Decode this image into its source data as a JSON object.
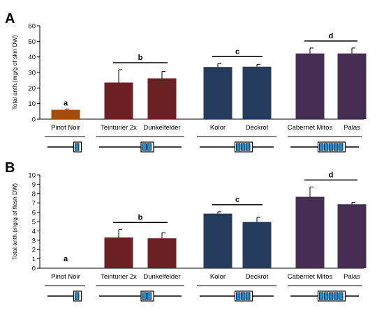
{
  "chart_data": [
    {
      "panel": "A",
      "type": "bar",
      "ylabel": "Total anth.(mg/g of skin DW)",
      "ylim": [
        0,
        60
      ],
      "yticks": [
        0,
        10,
        20,
        30,
        40,
        50,
        60
      ],
      "categories": [
        "Pinot Noir",
        "Teinturier 2x",
        "Dunkelfelder",
        "Kolor",
        "Deckrot",
        "Cabernet Mitos",
        "Palas"
      ],
      "values": [
        6,
        23.5,
        26.2,
        33.5,
        33.7,
        42.2,
        42.2
      ],
      "errors": [
        0.5,
        8.3,
        4.5,
        2.2,
        1.5,
        3.5,
        3.5
      ],
      "colors": [
        "#a24c0e",
        "#6b2124",
        "#6b2124",
        "#253b5b",
        "#253b5b",
        "#452c52",
        "#452c52"
      ],
      "groups": [
        {
          "label": "a",
          "from": 0,
          "to": 0
        },
        {
          "label": "b",
          "from": 1,
          "to": 2
        },
        {
          "label": "c",
          "from": 3,
          "to": 4
        },
        {
          "label": "d",
          "from": 5,
          "to": 6
        }
      ],
      "gene_boxes": [
        1,
        2,
        3,
        5
      ],
      "grid": false
    },
    {
      "panel": "B",
      "type": "bar",
      "ylabel": "Total anth.(mg/g of flesh DW)",
      "ylim": [
        0,
        10
      ],
      "yticks": [
        0,
        1,
        2,
        3,
        4,
        5,
        6,
        7,
        8,
        9,
        10
      ],
      "categories": [
        "Pinot Noir",
        "Teinturier 2x",
        "Dunkelfelder",
        "Kolor",
        "Deckrot",
        "Cabernet Mitos",
        "Palas"
      ],
      "values": [
        0,
        3.3,
        3.2,
        5.85,
        4.95,
        7.65,
        6.85
      ],
      "errors": [
        0,
        0.85,
        0.6,
        0.2,
        0.5,
        1.05,
        0.2
      ],
      "colors": [
        "#a24c0e",
        "#6b2124",
        "#6b2124",
        "#253b5b",
        "#253b5b",
        "#452c52",
        "#452c52"
      ],
      "groups": [
        {
          "label": "a",
          "from": 0,
          "to": 0
        },
        {
          "label": "b",
          "from": 1,
          "to": 2
        },
        {
          "label": "c",
          "from": 3,
          "to": 4
        },
        {
          "label": "d",
          "from": 5,
          "to": 6
        }
      ],
      "gene_boxes": [
        1,
        2,
        3,
        5
      ],
      "grid": false
    }
  ],
  "colors": {
    "gene_box_fill": "#1a8fd6",
    "axis": "#000000"
  }
}
